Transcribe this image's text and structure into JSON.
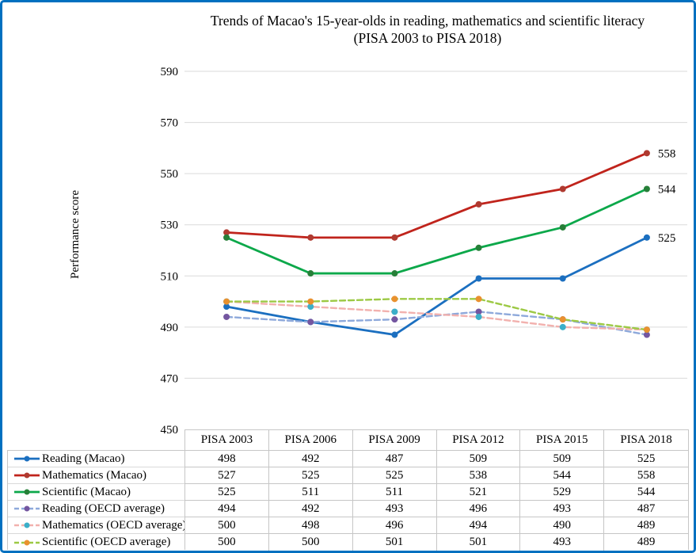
{
  "title": {
    "line1": "Trends of Macao's 15-year-olds in reading, mathematics  and scientific literacy",
    "line2": "(PISA 2003 to PISA 2018)"
  },
  "ylabel": "Performance score",
  "colors": {
    "frame_border": "#0070C0",
    "gridline": "#DADADA",
    "table_border": "#C6C6C6",
    "text": "#000000"
  },
  "chart_data": {
    "type": "line",
    "title": "Trends of Macao's 15-year-olds in reading, mathematics and scientific literacy (PISA 2003 to PISA 2018)",
    "xlabel": "",
    "ylabel": "Performance score",
    "categories": [
      "PISA 2003",
      "PISA 2006",
      "PISA 2009",
      "PISA 2012",
      "PISA 2015",
      "PISA 2018"
    ],
    "y_axis": {
      "min": 450,
      "max": 590,
      "step": 20,
      "ticks": [
        "590",
        "570",
        "550",
        "530",
        "510",
        "490",
        "470",
        "450"
      ]
    },
    "grid": true,
    "legend_position": "bottom-left of data table",
    "series": [
      {
        "name": "Reading (Macao)",
        "values": [
          498,
          492,
          487,
          509,
          509,
          525
        ],
        "color": "#1B6FC0",
        "marker_color": "#1B6FC0",
        "dashed": false,
        "end_label": "525"
      },
      {
        "name": "Mathematics (Macao)",
        "values": [
          527,
          525,
          525,
          538,
          544,
          558
        ],
        "color": "#C0241C",
        "marker_color": "#AF3A30",
        "dashed": false,
        "end_label": "558"
      },
      {
        "name": "Scientific (Macao)",
        "values": [
          525,
          511,
          511,
          521,
          529,
          544
        ],
        "color": "#0CA84A",
        "marker_color": "#267F38",
        "dashed": false,
        "end_label": "544"
      },
      {
        "name": "Reading (OECD average)",
        "values": [
          494,
          492,
          493,
          496,
          493,
          487
        ],
        "color": "#8EA9DB",
        "marker_color": "#7456A0",
        "dashed": true
      },
      {
        "name": "Mathematics (OECD average)",
        "values": [
          500,
          498,
          496,
          494,
          490,
          489
        ],
        "color": "#F2B1AE",
        "marker_color": "#3BAFC9",
        "dashed": true
      },
      {
        "name": "Scientific (OECD average)",
        "values": [
          500,
          500,
          501,
          501,
          493,
          489
        ],
        "color": "#9CC944",
        "marker_color": "#E9912F",
        "dashed": true
      }
    ]
  }
}
